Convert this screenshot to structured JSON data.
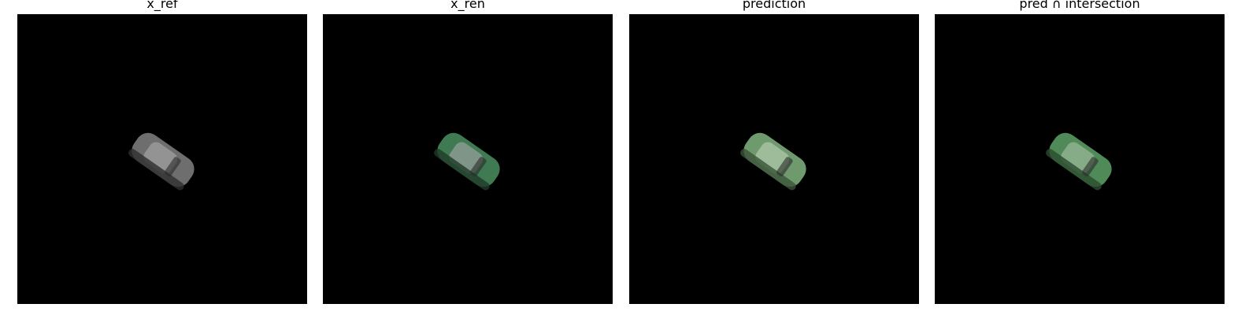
{
  "panels": [
    {
      "title": "x_ref",
      "car_body": "#6e6e6e",
      "car_highlight": "#9a9a9a",
      "car_shadow": "#2e2e2e"
    },
    {
      "title": "x_ren",
      "car_body": "#3f7a52",
      "car_highlight": "#8a9a90",
      "car_shadow": "#1f3a28"
    },
    {
      "title": "prediction",
      "car_body": "#6f9a6e",
      "car_highlight": "#a7c2a2",
      "car_shadow": "#3a5238"
    },
    {
      "title": "pred ∩ intersection",
      "car_body": "#4f8a58",
      "car_highlight": "#8fb18f",
      "car_shadow": "#2b4a30"
    }
  ]
}
